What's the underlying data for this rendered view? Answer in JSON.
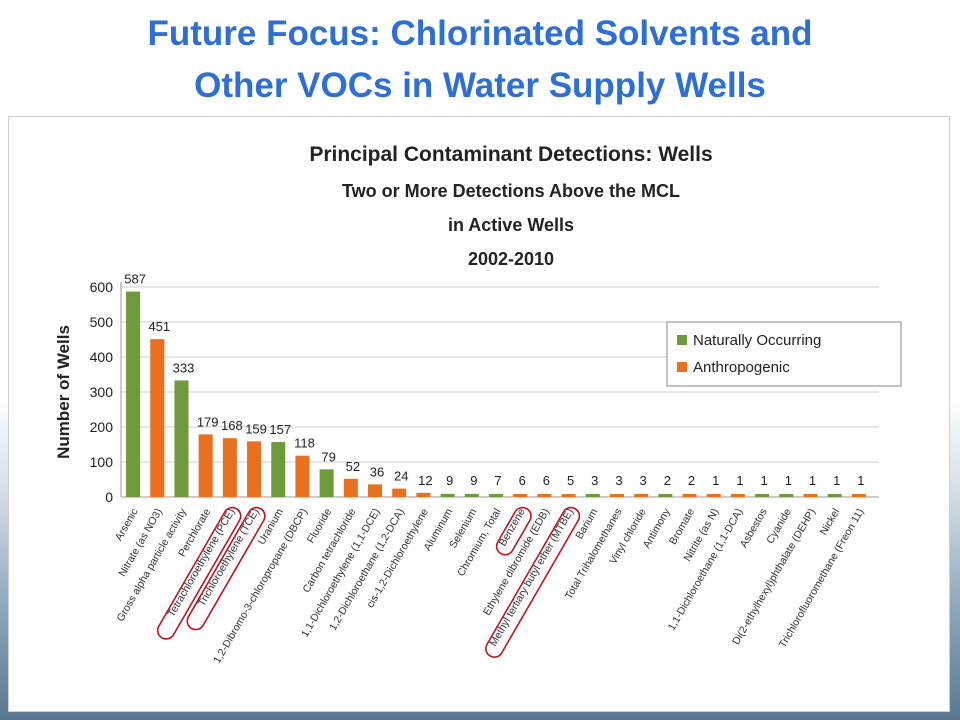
{
  "slide": {
    "title_line1": "Future Focus: Chlorinated Solvents and",
    "title_line2": "Other VOCs in Water Supply Wells"
  },
  "colors": {
    "title": "#2e6fd6",
    "naturally_occurring": "#6f9a3c",
    "anthropogenic": "#e8701f",
    "highlight_ring": "#c0141e"
  },
  "chart_data": {
    "type": "bar",
    "title": "Principal Contaminant Detections: Wells",
    "subtitle_lines": [
      "Two or More Detections Above the MCL",
      "in Active Wells",
      "2002-2010"
    ],
    "ylabel": "Number of Wells",
    "xlabel": "",
    "ylim": [
      0,
      600
    ],
    "yticks": [
      0,
      100,
      200,
      300,
      400,
      500,
      600
    ],
    "grid": true,
    "legend_position": "right",
    "legend": [
      "Naturally Occurring",
      "Anthropogenic"
    ],
    "categories": [
      "Arsenic",
      "Nitrate (as NO3)",
      "Gross alpha particle activity",
      "Perchlorate",
      "Tetrachloroethylene (PCE)",
      "Trichloroethylene (TCE)",
      "Uranium",
      "1,2-Dibromo-3-chloropropane (DBCP)",
      "Fluoride",
      "Carbon tetrachloride",
      "1,1-Dichloroethylene (1,1-DCE)",
      "1,2-Dichloroethane (1,2-DCA)",
      "cis-1,2-Dichloroethylene",
      "Aluminum",
      "Selenium",
      "Chromium, Total",
      "Benzene",
      "Ethylene dibromide (EDB)",
      "Methyl tertiary butyl ether (MTBE)",
      "Barium",
      "Total Trihalomethanes",
      "Vinyl chloride",
      "Antimony",
      "Bromate",
      "Nitrite (as N)",
      "1,1-Dichloroethane (1,1-DCA)",
      "Asbestos",
      "Cyanide",
      "Di(2-ethylhexyl)phthalate (DEHP)",
      "Nickel",
      "Trichlorofluoromethane (Freon 11)"
    ],
    "values": [
      587,
      451,
      333,
      179,
      168,
      159,
      157,
      118,
      79,
      52,
      36,
      24,
      12,
      9,
      9,
      7,
      6,
      6,
      5,
      3,
      3,
      3,
      2,
      2,
      1,
      1,
      1,
      1,
      1,
      1,
      1
    ],
    "value_labels": [
      "587",
      "451",
      "333",
      "179",
      "168",
      "159",
      "157",
      "118",
      "79",
      "52",
      "36",
      "24",
      "12",
      "9",
      "9",
      "7",
      "6",
      "6",
      "5",
      "3",
      "3",
      "3",
      "2",
      "2",
      "1",
      "1",
      "1",
      "1",
      "1",
      "1",
      "1"
    ],
    "groups": [
      "Naturally Occurring",
      "Anthropogenic",
      "Naturally Occurring",
      "Anthropogenic",
      "Anthropogenic",
      "Anthropogenic",
      "Naturally Occurring",
      "Anthropogenic",
      "Naturally Occurring",
      "Anthropogenic",
      "Anthropogenic",
      "Anthropogenic",
      "Anthropogenic",
      "Naturally Occurring",
      "Naturally Occurring",
      "Naturally Occurring",
      "Anthropogenic",
      "Anthropogenic",
      "Anthropogenic",
      "Naturally Occurring",
      "Anthropogenic",
      "Anthropogenic",
      "Naturally Occurring",
      "Anthropogenic",
      "Anthropogenic",
      "Anthropogenic",
      "Naturally Occurring",
      "Naturally Occurring",
      "Anthropogenic",
      "Naturally Occurring",
      "Anthropogenic"
    ],
    "highlighted_categories": [
      "Tetrachloroethylene (PCE)",
      "Trichloroethylene (TCE)",
      "Benzene",
      "Methyl tertiary butyl ether (MTBE)"
    ]
  }
}
